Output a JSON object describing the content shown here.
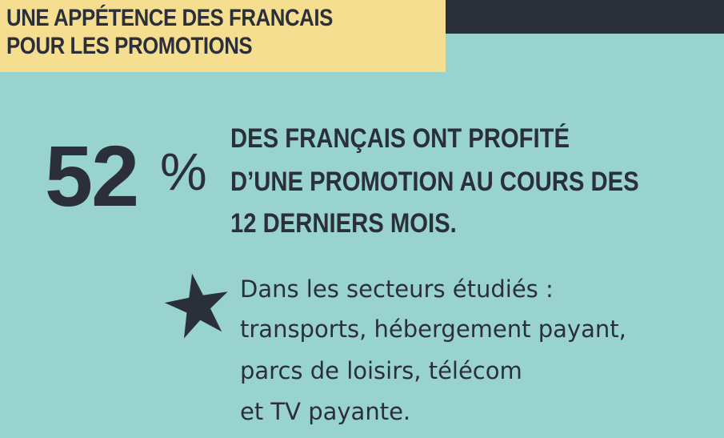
{
  "header": {
    "title_line1": "UNE APPÉTENCE DES FRANCAIS",
    "title_line2": "POUR LES PROMOTIONS"
  },
  "stat": {
    "value": "52",
    "unit": "%",
    "description_lines": [
      "DES FRANÇAIS ONT PROFITÉ",
      "D’UNE PROMOTION AU COURS DES",
      "12 DERNIERS MOIS."
    ]
  },
  "note": {
    "icon": "star-icon",
    "lines": [
      "Dans les secteurs étudiés :",
      "transports, hébergement payant,",
      "parcs de loisirs, télécom",
      "et TV payante."
    ]
  },
  "colors": {
    "background": "#99d3d0",
    "title_band": "#f5de8f",
    "top_bar": "#2b2f3a",
    "text": "#2b2f3a"
  }
}
